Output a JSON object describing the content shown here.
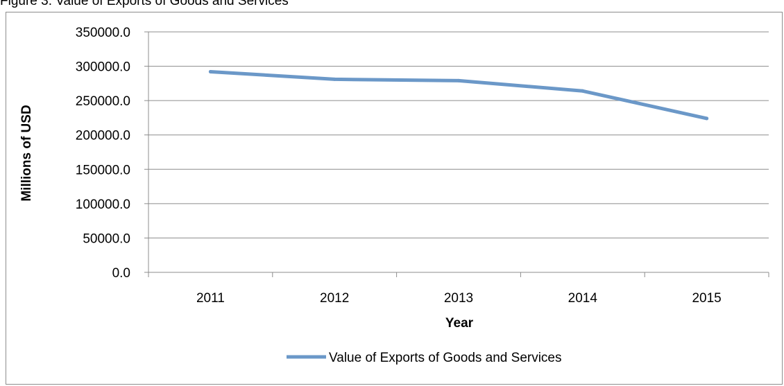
{
  "caption": "Figure 3: Value of Exports of Goods and Services",
  "chart_data": {
    "type": "line",
    "title": "",
    "xlabel": "Year",
    "ylabel": "Millions of USD",
    "categories": [
      "2011",
      "2012",
      "2013",
      "2014",
      "2015"
    ],
    "series": [
      {
        "name": "Value of Exports of Goods and Services",
        "values": [
          292000.0,
          281000.0,
          279000.0,
          264000.0,
          224000.0
        ],
        "color": "#6b98c8"
      }
    ],
    "ylim": [
      0,
      350000
    ],
    "yticks": [
      "0.0",
      "50000.0",
      "100000.0",
      "150000.0",
      "200000.0",
      "250000.0",
      "300000.0",
      "350000.0"
    ],
    "grid": true,
    "legend_position": "bottom"
  }
}
